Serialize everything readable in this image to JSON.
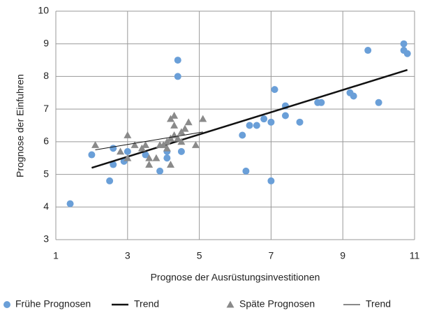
{
  "chart_data": {
    "type": "scatter",
    "x_label": "Prognose der Ausrüstungsinvestitionen",
    "y_label": "Prognose der Einfuhren",
    "xlim": [
      1,
      11
    ],
    "xticks": [
      1,
      3,
      5,
      7,
      9,
      11
    ],
    "ylim": [
      3,
      10
    ],
    "yticks": [
      3,
      4,
      5,
      6,
      7,
      8,
      9,
      10
    ],
    "grid": true,
    "legend": "bottom",
    "series": [
      {
        "name": "Frühe Prognosen",
        "color": "#6a9fd8",
        "marker": "circle",
        "x": [
          1.4,
          2.0,
          2.5,
          2.6,
          2.6,
          2.9,
          3.0,
          3.5,
          3.9,
          4.1,
          4.1,
          4.4,
          4.4,
          4.5,
          6.2,
          6.3,
          6.4,
          6.6,
          6.8,
          7.0,
          7.0,
          7.1,
          7.4,
          7.4,
          7.8,
          8.3,
          8.4,
          9.2,
          9.3,
          9.7,
          10.0,
          10.7,
          10.7,
          10.8
        ],
        "values": [
          4.1,
          5.6,
          4.8,
          5.3,
          5.8,
          5.4,
          5.7,
          5.6,
          5.1,
          5.5,
          5.7,
          8.5,
          8.0,
          5.7,
          6.2,
          5.1,
          6.5,
          6.5,
          6.7,
          6.6,
          4.8,
          7.6,
          7.1,
          6.8,
          6.6,
          7.2,
          7.2,
          7.5,
          7.4,
          8.8,
          7.2,
          9.0,
          8.8,
          8.7
        ]
      },
      {
        "name": "Trend",
        "color": "#111111",
        "marker": "line",
        "line_width": 2.5,
        "x": [
          2.0,
          10.8
        ],
        "values": [
          5.2,
          8.2
        ]
      },
      {
        "name": "Späte Prognosen",
        "color": "#8a8a8a",
        "marker": "triangle",
        "x": [
          2.1,
          2.8,
          3.0,
          3.0,
          3.2,
          3.4,
          3.5,
          3.6,
          3.6,
          3.8,
          3.9,
          4.0,
          4.1,
          4.1,
          4.2,
          4.2,
          4.3,
          4.3,
          4.3,
          4.4,
          4.5,
          4.6,
          4.7,
          4.9,
          5.1,
          4.5,
          4.2
        ],
        "values": [
          5.9,
          5.7,
          6.2,
          5.5,
          5.9,
          5.8,
          5.9,
          5.5,
          5.3,
          5.5,
          5.9,
          5.9,
          5.8,
          6.0,
          6.7,
          5.3,
          6.8,
          6.5,
          6.2,
          6.1,
          6.3,
          6.4,
          6.6,
          5.9,
          6.7,
          6.0,
          6.1
        ]
      },
      {
        "name": "Trend",
        "color": "#111111",
        "marker": "line",
        "line_width": 1,
        "x": [
          2.1,
          5.1
        ],
        "values": [
          5.75,
          6.3
        ]
      }
    ]
  }
}
